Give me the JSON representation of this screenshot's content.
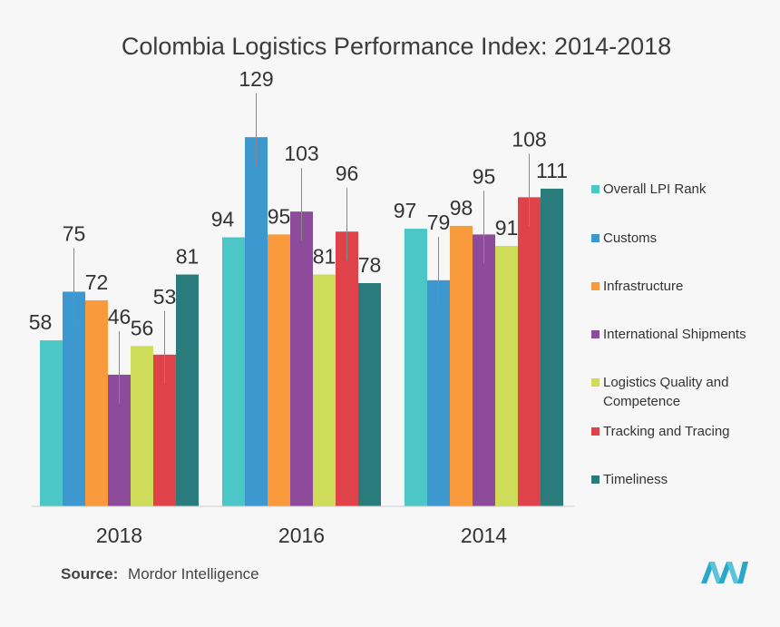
{
  "source": {
    "prefix": "Source:",
    "name": "Mordor Intelligence"
  },
  "chart_data": {
    "type": "bar",
    "title": "Colombia Logistics Performance Index: 2014-2018",
    "categories": [
      "2018",
      "2016",
      "2014"
    ],
    "series": [
      {
        "name": "Overall LPI Rank",
        "color": "#4cc6c6",
        "values": [
          58,
          94,
          97
        ]
      },
      {
        "name": "Customs",
        "color": "#3e98d0",
        "values": [
          75,
          129,
          79
        ]
      },
      {
        "name": "Infrastructure",
        "color": "#f99a3d",
        "values": [
          72,
          95,
          98
        ]
      },
      {
        "name": "International Shipments",
        "color": "#8e4b9c",
        "values": [
          46,
          103,
          95
        ]
      },
      {
        "name": "Logistics Quality and Competence",
        "legend_lines": [
          "Logistics Quality and",
          "Competence"
        ],
        "color": "#cfdc59",
        "values": [
          56,
          81,
          91
        ]
      },
      {
        "name": "Tracking and Tracing",
        "color": "#df4249",
        "values": [
          53,
          96,
          108
        ]
      },
      {
        "name": "Timeliness",
        "color": "#2a7b7c",
        "values": [
          81,
          78,
          111
        ]
      }
    ],
    "xlabel": "",
    "ylabel": "",
    "ylim": [
      0,
      130
    ],
    "grid": false,
    "legend": "right"
  },
  "logo": {
    "name": "mordor-logo"
  }
}
